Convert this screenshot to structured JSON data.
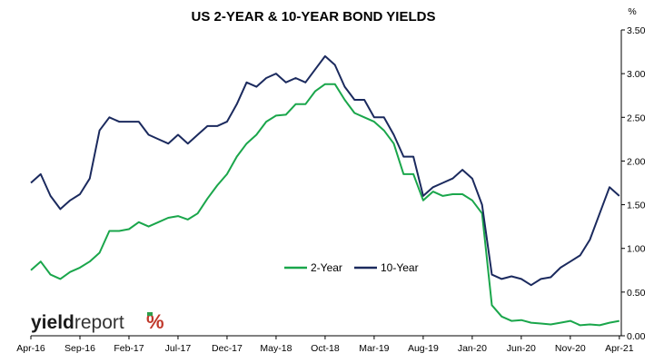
{
  "chart_data": {
    "type": "line",
    "title": "US 2-YEAR & 10-YEAR BOND YIELDS",
    "y_unit": "%",
    "ylim": [
      0,
      3.5
    ],
    "y_ticks": [
      "0.00",
      "0.50",
      "1.00",
      "1.50",
      "2.00",
      "2.50",
      "3.00",
      "3.50"
    ],
    "x_ticks": [
      "Apr-16",
      "Sep-16",
      "Feb-17",
      "Jul-17",
      "Dec-17",
      "May-18",
      "Oct-18",
      "Mar-19",
      "Aug-19",
      "Jan-20",
      "Jun-20",
      "Nov-20",
      "Apr-21"
    ],
    "grid": false,
    "legend_position": "center-bottom",
    "series": [
      {
        "name": "2-Year",
        "color": "#1aa64b",
        "x": [
          "2016-04",
          "2016-05",
          "2016-06",
          "2016-07",
          "2016-08",
          "2016-09",
          "2016-10",
          "2016-11",
          "2016-12",
          "2017-01",
          "2017-02",
          "2017-03",
          "2017-04",
          "2017-05",
          "2017-06",
          "2017-07",
          "2017-08",
          "2017-09",
          "2017-10",
          "2017-11",
          "2017-12",
          "2018-01",
          "2018-02",
          "2018-03",
          "2018-04",
          "2018-05",
          "2018-06",
          "2018-07",
          "2018-08",
          "2018-09",
          "2018-10",
          "2018-11",
          "2018-12",
          "2019-01",
          "2019-02",
          "2019-03",
          "2019-04",
          "2019-05",
          "2019-06",
          "2019-07",
          "2019-08",
          "2019-09",
          "2019-10",
          "2019-11",
          "2019-12",
          "2020-01",
          "2020-02",
          "2020-03",
          "2020-04",
          "2020-05",
          "2020-06",
          "2020-07",
          "2020-08",
          "2020-09",
          "2020-10",
          "2020-11",
          "2020-12",
          "2021-01",
          "2021-02",
          "2021-03",
          "2021-04"
        ],
        "values": [
          0.75,
          0.85,
          0.7,
          0.65,
          0.73,
          0.78,
          0.85,
          0.95,
          1.2,
          1.2,
          1.22,
          1.3,
          1.25,
          1.3,
          1.35,
          1.37,
          1.33,
          1.4,
          1.57,
          1.72,
          1.85,
          2.05,
          2.2,
          2.3,
          2.45,
          2.52,
          2.53,
          2.65,
          2.65,
          2.8,
          2.88,
          2.88,
          2.7,
          2.55,
          2.5,
          2.45,
          2.35,
          2.2,
          1.85,
          1.85,
          1.55,
          1.65,
          1.6,
          1.62,
          1.62,
          1.55,
          1.4,
          0.35,
          0.22,
          0.17,
          0.18,
          0.15,
          0.14,
          0.13,
          0.15,
          0.17,
          0.12,
          0.13,
          0.12,
          0.15,
          0.17
        ]
      },
      {
        "name": "10-Year",
        "color": "#1b2a5e",
        "x": [
          "2016-04",
          "2016-05",
          "2016-06",
          "2016-07",
          "2016-08",
          "2016-09",
          "2016-10",
          "2016-11",
          "2016-12",
          "2017-01",
          "2017-02",
          "2017-03",
          "2017-04",
          "2017-05",
          "2017-06",
          "2017-07",
          "2017-08",
          "2017-09",
          "2017-10",
          "2017-11",
          "2017-12",
          "2018-01",
          "2018-02",
          "2018-03",
          "2018-04",
          "2018-05",
          "2018-06",
          "2018-07",
          "2018-08",
          "2018-09",
          "2018-10",
          "2018-11",
          "2018-12",
          "2019-01",
          "2019-02",
          "2019-03",
          "2019-04",
          "2019-05",
          "2019-06",
          "2019-07",
          "2019-08",
          "2019-09",
          "2019-10",
          "2019-11",
          "2019-12",
          "2020-01",
          "2020-02",
          "2020-03",
          "2020-04",
          "2020-05",
          "2020-06",
          "2020-07",
          "2020-08",
          "2020-09",
          "2020-10",
          "2020-11",
          "2020-12",
          "2021-01",
          "2021-02",
          "2021-03",
          "2021-04"
        ],
        "values": [
          1.75,
          1.85,
          1.6,
          1.45,
          1.55,
          1.62,
          1.8,
          2.35,
          2.5,
          2.45,
          2.45,
          2.45,
          2.3,
          2.25,
          2.2,
          2.3,
          2.2,
          2.3,
          2.4,
          2.4,
          2.45,
          2.65,
          2.9,
          2.85,
          2.95,
          3.0,
          2.9,
          2.95,
          2.9,
          3.05,
          3.2,
          3.1,
          2.85,
          2.7,
          2.7,
          2.5,
          2.5,
          2.3,
          2.05,
          2.05,
          1.6,
          1.7,
          1.75,
          1.8,
          1.9,
          1.8,
          1.5,
          0.7,
          0.65,
          0.68,
          0.65,
          0.58,
          0.65,
          0.67,
          0.78,
          0.85,
          0.92,
          1.1,
          1.4,
          1.7,
          1.6
        ]
      }
    ]
  },
  "logo": {
    "wordmark_bold": "yield",
    "wordmark_light": "report",
    "symbol": "%"
  }
}
